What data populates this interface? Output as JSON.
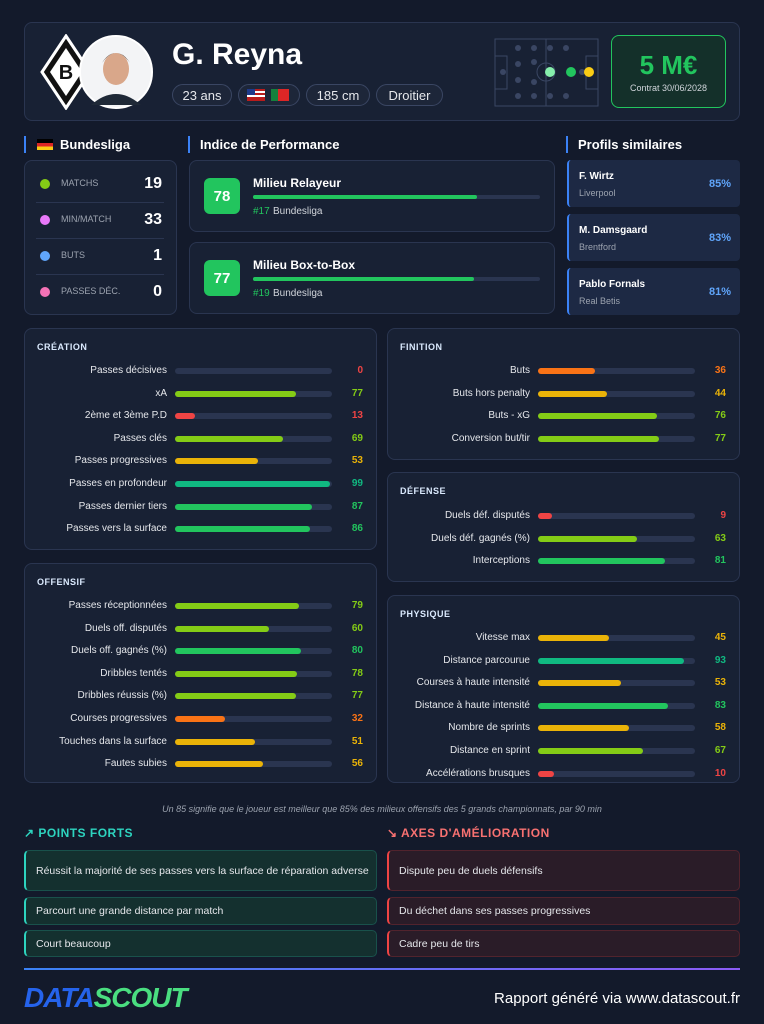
{
  "header": {
    "name": "G. Reyna",
    "age": "23 ans",
    "height": "185 cm",
    "foot": "Droitier",
    "value": "5 M€",
    "contract": "Contrat 30/06/2028"
  },
  "league": {
    "title": "Bundesliga",
    "stats": [
      {
        "label": "MATCHS",
        "value": 19
      },
      {
        "label": "MIN/MATCH",
        "value": 33
      },
      {
        "label": "BUTS",
        "value": 1
      },
      {
        "label": "PASSES DÉC.",
        "value": 0
      }
    ]
  },
  "performance": {
    "title": "Indice de Performance",
    "items": [
      {
        "score": 78,
        "role": "Milieu Relayeur",
        "rank": "#17",
        "league": "Bundesliga"
      },
      {
        "score": 77,
        "role": "Milieu Box-to-Box",
        "rank": "#19",
        "league": "Bundesliga"
      }
    ]
  },
  "similar": {
    "title": "Profils similaires",
    "items": [
      {
        "name": "F. Wirtz",
        "club": "Liverpool",
        "match": "85%"
      },
      {
        "name": "M. Damsgaard",
        "club": "Brentford",
        "match": "83%"
      },
      {
        "name": "Pablo Fornals",
        "club": "Real Betis",
        "match": "81%"
      }
    ]
  },
  "sections": [
    {
      "title": "CRÉATION",
      "rows": [
        {
          "label": "Passes décisives",
          "value": 0
        },
        {
          "label": "xA",
          "value": 77
        },
        {
          "label": "2ème et 3ème P.D",
          "value": 13
        },
        {
          "label": "Passes clés",
          "value": 69
        },
        {
          "label": "Passes progressives",
          "value": 53
        },
        {
          "label": "Passes en profondeur",
          "value": 99
        },
        {
          "label": "Passes dernier tiers",
          "value": 87
        },
        {
          "label": "Passes vers la surface",
          "value": 86
        }
      ]
    },
    {
      "title": "OFFENSIF",
      "rows": [
        {
          "label": "Passes réceptionnées",
          "value": 79
        },
        {
          "label": "Duels off. disputés",
          "value": 60
        },
        {
          "label": "Duels off. gagnés (%)",
          "value": 80
        },
        {
          "label": "Dribbles tentés",
          "value": 78
        },
        {
          "label": "Dribbles réussis (%)",
          "value": 77
        },
        {
          "label": "Courses progressives",
          "value": 32
        },
        {
          "label": "Touches dans la surface",
          "value": 51
        },
        {
          "label": "Fautes subies",
          "value": 56
        }
      ]
    },
    {
      "title": "FINITION",
      "rows": [
        {
          "label": "Buts",
          "value": 36
        },
        {
          "label": "Buts hors penalty",
          "value": 44
        },
        {
          "label": "Buts - xG",
          "value": 76
        },
        {
          "label": "Conversion but/tir",
          "value": 77
        }
      ]
    },
    {
      "title": "DÉFENSE",
      "rows": [
        {
          "label": "Duels déf. disputés",
          "value": 9
        },
        {
          "label": "Duels déf. gagnés (%)",
          "value": 63
        },
        {
          "label": "Interceptions",
          "value": 81
        }
      ]
    },
    {
      "title": "PHYSIQUE",
      "rows": [
        {
          "label": "Vitesse max",
          "value": 45
        },
        {
          "label": "Distance parcourue",
          "value": 93
        },
        {
          "label": "Courses à haute intensité",
          "value": 53
        },
        {
          "label": "Distance à haute intensité",
          "value": 83
        },
        {
          "label": "Nombre de sprints",
          "value": 58
        },
        {
          "label": "Distance en sprint",
          "value": 67
        },
        {
          "label": "Accélérations brusques",
          "value": 10
        }
      ]
    }
  ],
  "note": "Un 85 signifie que le joueur est meilleur que 85% des milieux offensifs des 5 grands championnats, par 90 min",
  "strengths": {
    "title": "POINTS FORTS",
    "items": [
      "Réussit la majorité de ses passes vers la surface de réparation adverse",
      "Parcourt une grande distance par match",
      "Court beaucoup"
    ]
  },
  "improvements": {
    "title": "AXES D'AMÉLIORATION",
    "items": [
      "Dispute peu de duels défensifs",
      "Du déchet dans ses passes progressives",
      "Cadre peu de tirs"
    ]
  },
  "footer": {
    "logo_a": "DATA",
    "logo_b": "SCOUT",
    "text": "Rapport généré via www.datascout.fr"
  }
}
